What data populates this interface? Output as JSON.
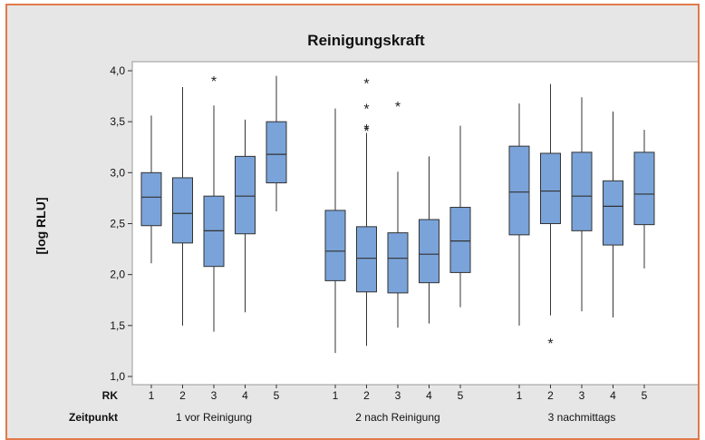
{
  "chart_data": {
    "type": "boxplot",
    "title": "Reinigungskraft",
    "ylabel": "[log RLU]",
    "ylim": [
      1.0,
      4.0
    ],
    "yticks": [
      "1,0",
      "1,5",
      "2,0",
      "2,5",
      "3,0",
      "3,5",
      "4,0"
    ],
    "ytick_values": [
      1.0,
      1.5,
      2.0,
      2.5,
      3.0,
      3.5,
      4.0
    ],
    "row_labels": {
      "rk": "RK",
      "zeitpunkt": "Zeitpunkt"
    },
    "groups": [
      {
        "name": "1 vor Reinigung",
        "boxes": [
          {
            "rk": "1",
            "min": 2.11,
            "q1": 2.48,
            "median": 2.76,
            "q3": 3.0,
            "max": 3.56,
            "outliers": []
          },
          {
            "rk": "2",
            "min": 1.5,
            "q1": 2.31,
            "median": 2.6,
            "q3": 2.95,
            "max": 3.84,
            "outliers": []
          },
          {
            "rk": "3",
            "min": 1.44,
            "q1": 2.08,
            "median": 2.43,
            "q3": 2.77,
            "max": 3.66,
            "outliers": [
              3.91
            ]
          },
          {
            "rk": "4",
            "min": 1.63,
            "q1": 2.4,
            "median": 2.77,
            "q3": 3.16,
            "max": 3.52,
            "outliers": []
          },
          {
            "rk": "5",
            "min": 2.62,
            "q1": 2.9,
            "median": 3.18,
            "q3": 3.5,
            "max": 3.95,
            "outliers": []
          }
        ]
      },
      {
        "name": "2 nach Reinigung",
        "boxes": [
          {
            "rk": "1",
            "min": 1.23,
            "q1": 1.94,
            "median": 2.23,
            "q3": 2.63,
            "max": 3.63,
            "outliers": []
          },
          {
            "rk": "2",
            "min": 1.3,
            "q1": 1.83,
            "median": 2.16,
            "q3": 2.47,
            "max": 3.39,
            "outliers": [
              3.42,
              3.44,
              3.64,
              3.89
            ]
          },
          {
            "rk": "3",
            "min": 1.48,
            "q1": 1.82,
            "median": 2.16,
            "q3": 2.41,
            "max": 3.01,
            "outliers": [
              3.66
            ]
          },
          {
            "rk": "4",
            "min": 1.52,
            "q1": 1.92,
            "median": 2.2,
            "q3": 2.54,
            "max": 3.16,
            "outliers": []
          },
          {
            "rk": "5",
            "min": 1.68,
            "q1": 2.02,
            "median": 2.33,
            "q3": 2.66,
            "max": 3.46,
            "outliers": []
          }
        ]
      },
      {
        "name": "3 nachmittags",
        "boxes": [
          {
            "rk": "1",
            "min": 1.5,
            "q1": 2.39,
            "median": 2.81,
            "q3": 3.26,
            "max": 3.68,
            "outliers": []
          },
          {
            "rk": "2",
            "min": 1.6,
            "q1": 2.5,
            "median": 2.82,
            "q3": 3.19,
            "max": 3.87,
            "outliers": [
              1.34
            ]
          },
          {
            "rk": "3",
            "min": 1.64,
            "q1": 2.43,
            "median": 2.77,
            "q3": 3.2,
            "max": 3.74,
            "outliers": []
          },
          {
            "rk": "4",
            "min": 1.58,
            "q1": 2.29,
            "median": 2.67,
            "q3": 2.92,
            "max": 3.6,
            "outliers": []
          },
          {
            "rk": "5",
            "min": 2.06,
            "q1": 2.49,
            "median": 2.79,
            "q3": 3.2,
            "max": 3.42,
            "outliers": []
          }
        ]
      }
    ],
    "colors": {
      "box_fill": "#7aa3d9",
      "box_stroke": "#333333",
      "plot_bg": "#ffffff",
      "frame_bg": "#e6e6e6",
      "frame_border": "#e07a4a"
    }
  }
}
